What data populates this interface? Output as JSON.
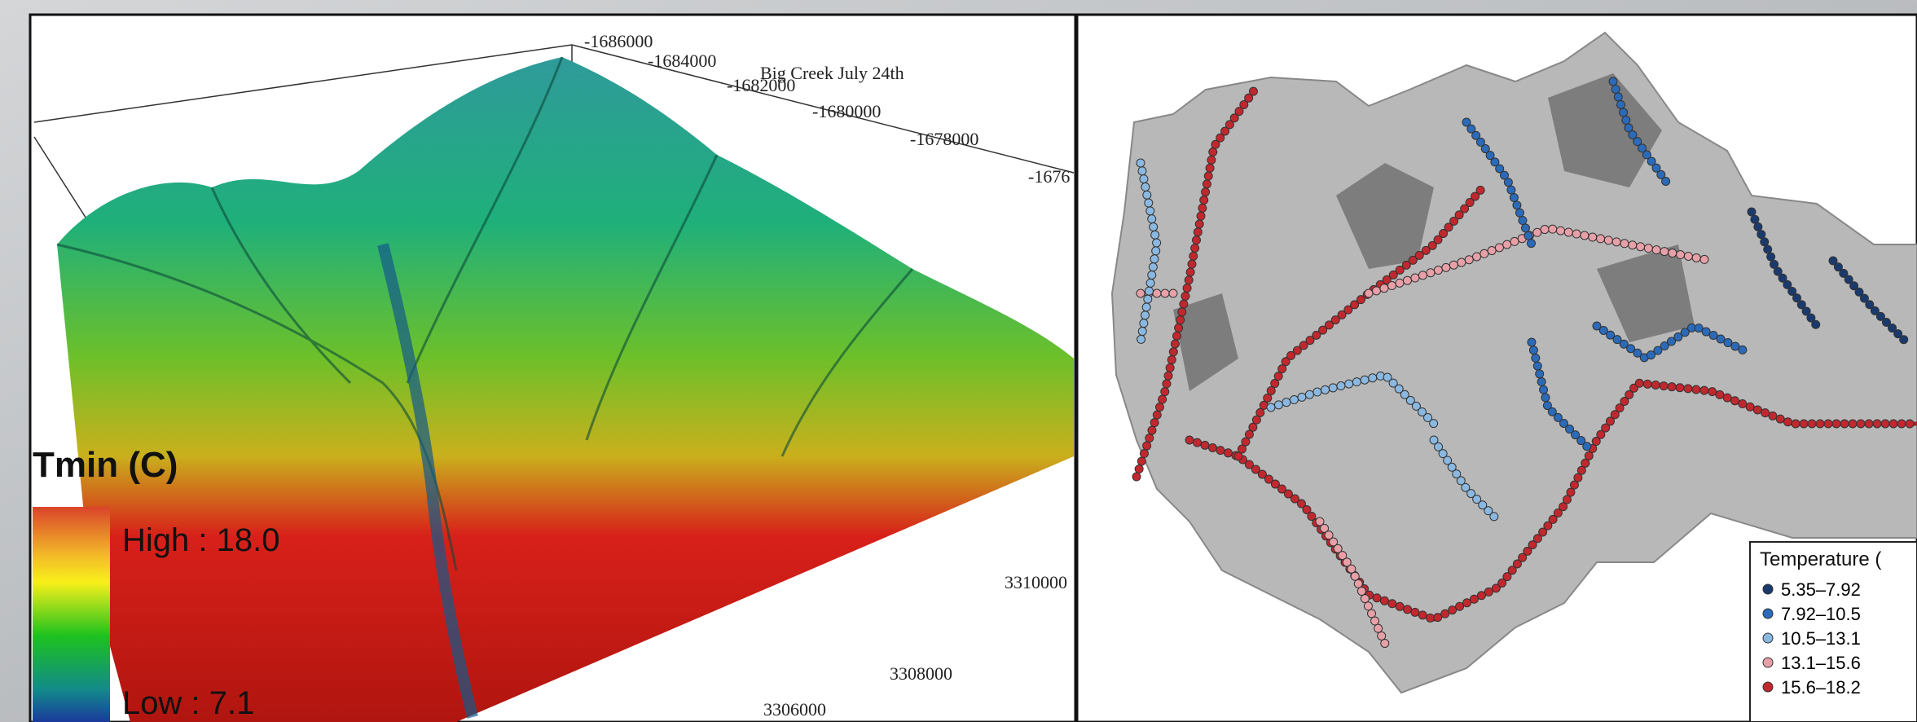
{
  "surface_map": {
    "title": "Big Creek July 24th",
    "x_labels": [
      "-1686000",
      "-1684000",
      "-1682000",
      "-1680000",
      "-1678000",
      "-1676"
    ],
    "y_labels": [
      "3310000",
      "3308000",
      "3306000"
    ],
    "legend": {
      "title": "Tmin (C)",
      "high": "High : 18.0",
      "low": "Low : 7.1"
    }
  },
  "stream_map": {
    "legend": {
      "title": "Temperature (",
      "items": [
        "5.35–7.92",
        "7.92–10.5",
        "10.5–13.1",
        "13.1–15.6",
        "15.6–18.2"
      ]
    }
  }
}
